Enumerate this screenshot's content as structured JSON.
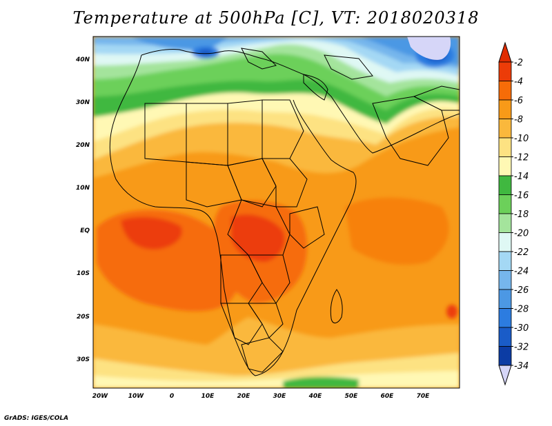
{
  "title": "Temperature at 500hPa [C], VT: 2018020318",
  "credit": "GrADS: IGES/COLA",
  "map": {
    "lon_range": [
      -23,
      80
    ],
    "lat_range": [
      -37,
      45
    ],
    "x_ticks": [
      "20W",
      "10W",
      "0",
      "10E",
      "20E",
      "30E",
      "40E",
      "50E",
      "60E",
      "70E"
    ],
    "y_ticks": [
      "40N",
      "30N",
      "20N",
      "10N",
      "EQ",
      "10S",
      "20S",
      "30S"
    ]
  },
  "colorbar": {
    "labels": [
      "-2",
      "-4",
      "-6",
      "-8",
      "-10",
      "-12",
      "-14",
      "-16",
      "-18",
      "-20",
      "-22",
      "-24",
      "-26",
      "-28",
      "-30",
      "-32",
      "-34"
    ],
    "colors": [
      "#ec3c08",
      "#f66c08",
      "#f89a18",
      "#fab83c",
      "#fde282",
      "#fff8b4",
      "#40b840",
      "#6cd05a",
      "#a4e49c",
      "#dff8f4",
      "#a4d8f4",
      "#76b6ec",
      "#4c98e4",
      "#2c7ce0",
      "#1a5cc8",
      "#0c3ca4",
      "#08207c"
    ],
    "top_triangle_color": "#e02c00",
    "bottom_triangle_color": "#d6d6f8"
  }
}
